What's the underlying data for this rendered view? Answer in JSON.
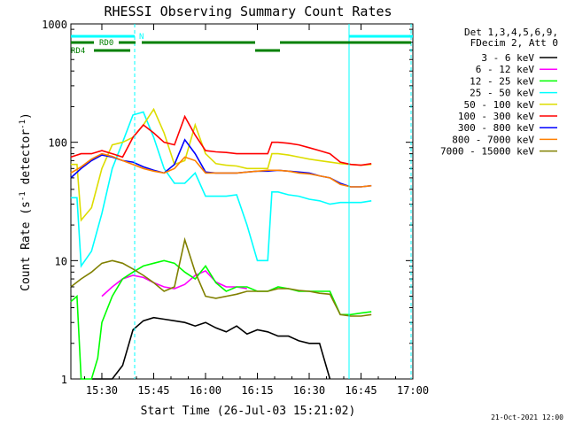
{
  "chart_data": {
    "type": "line",
    "title": "RHESSI Observing Summary Count Rates",
    "xlabel": "Start Time (26-Jul-03 15:21:02)",
    "ylabel": "Count Rate (s",
    "ylabel_sup1": "-1",
    "ylabel_mid": " detector",
    "ylabel_sup2": "-1",
    "ylabel_end": ")",
    "y_scale": "log",
    "ylim": [
      1,
      1000
    ],
    "xlim": [
      "15:21:02",
      "17:00:00"
    ],
    "x_ticks": [
      "15:30",
      "15:45",
      "16:00",
      "16:15",
      "16:30",
      "16:45",
      "17:00"
    ],
    "y_ticks": [
      "1",
      "10",
      "100",
      "1000"
    ],
    "legend_title": [
      "Det 1,3,4,5,6,9,",
      "FDecim 2, Att 0"
    ],
    "legend_position": "right",
    "footer_date": "21-Oct-2021 12:00",
    "markers": [
      {
        "label": "N",
        "color": "#00ffff"
      },
      {
        "label": "RD0",
        "color": "#008000"
      },
      {
        "label": "RD4",
        "color": "#008000"
      }
    ],
    "series": [
      {
        "name": "3 - 6 keV",
        "color": "#000000",
        "x": [
          15.45,
          15.5,
          15.55,
          15.6,
          15.65,
          15.7,
          15.75,
          15.8,
          15.85,
          15.9,
          15.95,
          16.0,
          16.05,
          16.1,
          16.15,
          16.2,
          16.25,
          16.3,
          16.35,
          16.4,
          16.45,
          16.5,
          16.55,
          16.6
        ],
        "y": [
          1,
          1,
          1,
          1.3,
          2.6,
          3.1,
          3.3,
          3.2,
          3.1,
          3.0,
          2.8,
          3.0,
          2.7,
          2.5,
          2.8,
          2.4,
          2.6,
          2.5,
          2.3,
          2.3,
          2.1,
          2.0,
          2.0,
          1
        ]
      },
      {
        "name": "6 - 12 keV",
        "color": "#ff00ff",
        "x": [
          15.5,
          15.55,
          15.6,
          15.65,
          15.7,
          15.75,
          15.8,
          15.85,
          15.9,
          15.95,
          16.0,
          16.05,
          16.1,
          16.15,
          16.2
        ],
        "y": [
          5,
          6,
          7,
          7.5,
          7.2,
          6.5,
          6.0,
          5.8,
          6.3,
          7.5,
          8.2,
          6.6,
          6.0,
          6.0,
          5.8
        ]
      },
      {
        "name": "12 - 25 keV",
        "color": "#00ff00",
        "x": [
          15.35,
          15.38,
          15.4,
          15.45,
          15.48,
          15.5,
          15.55,
          15.6,
          15.65,
          15.7,
          15.75,
          15.8,
          15.85,
          15.9,
          15.95,
          16.0,
          16.05,
          16.1,
          16.15,
          16.2,
          16.25,
          16.3,
          16.35,
          16.4,
          16.45,
          16.5,
          16.55,
          16.6,
          16.65,
          16.7,
          16.75,
          16.8
        ],
        "y": [
          4.5,
          5,
          1,
          1,
          1.5,
          3,
          5,
          7,
          8,
          9,
          9.5,
          10,
          9.5,
          8,
          7,
          9,
          6.5,
          5.5,
          6,
          6,
          5.5,
          5.5,
          6,
          5.8,
          5.5,
          5.5,
          5.5,
          5.5,
          3.5,
          3.5,
          3.6,
          3.7
        ]
      },
      {
        "name": "25 - 50 keV",
        "color": "#00ffff",
        "x": [
          15.35,
          15.38,
          15.4,
          15.45,
          15.5,
          15.55,
          15.6,
          15.65,
          15.7,
          15.75,
          15.8,
          15.85,
          15.9,
          15.95,
          16.0,
          16.05,
          16.1,
          16.15,
          16.2,
          16.25,
          16.3,
          16.32,
          16.35,
          16.4,
          16.45,
          16.5,
          16.55,
          16.6,
          16.65,
          16.7,
          16.75,
          16.8
        ],
        "y": [
          34,
          34,
          9,
          12,
          25,
          60,
          100,
          170,
          180,
          110,
          60,
          45,
          45,
          55,
          35,
          35,
          35,
          36,
          20,
          10,
          10,
          38,
          38,
          36,
          35,
          33,
          32,
          30,
          31,
          31,
          31,
          32
        ]
      },
      {
        "name": "50 - 100 keV",
        "color": "#dddd00",
        "x": [
          15.35,
          15.38,
          15.4,
          15.45,
          15.5,
          15.55,
          15.6,
          15.65,
          15.7,
          15.75,
          15.8,
          15.85,
          15.9,
          15.95,
          16.0,
          16.05,
          16.1,
          16.15,
          16.2,
          16.25,
          16.3,
          16.32,
          16.35,
          16.4,
          16.45,
          16.5,
          16.55,
          16.6,
          16.65,
          16.7,
          16.75,
          16.8
        ],
        "y": [
          65,
          65,
          22,
          28,
          60,
          95,
          100,
          110,
          140,
          190,
          120,
          65,
          70,
          140,
          80,
          66,
          64,
          63,
          60,
          60,
          60,
          80,
          80,
          78,
          75,
          72,
          70,
          68,
          66,
          65,
          64,
          65
        ]
      },
      {
        "name": "100 - 300 keV",
        "color": "#ff0000",
        "x": [
          15.35,
          15.4,
          15.45,
          15.5,
          15.55,
          15.6,
          15.65,
          15.7,
          15.75,
          15.8,
          15.85,
          15.9,
          15.95,
          16.0,
          16.05,
          16.1,
          16.15,
          16.2,
          16.25,
          16.3,
          16.32,
          16.35,
          16.4,
          16.45,
          16.5,
          16.55,
          16.6,
          16.65,
          16.7,
          16.75,
          16.8
        ],
        "y": [
          75,
          80,
          80,
          85,
          80,
          75,
          110,
          140,
          120,
          100,
          95,
          165,
          115,
          85,
          83,
          82,
          80,
          80,
          80,
          80,
          100,
          100,
          98,
          95,
          90,
          85,
          80,
          68,
          65,
          64,
          66
        ]
      },
      {
        "name": "300 - 800 keV",
        "color": "#0000ff",
        "x": [
          15.35,
          15.4,
          15.45,
          15.5,
          15.55,
          15.6,
          15.65,
          15.7,
          15.75,
          15.8,
          15.85,
          15.9,
          15.95,
          16.0,
          16.05,
          16.1,
          16.15,
          16.2,
          16.25,
          16.3,
          16.35,
          16.4,
          16.45,
          16.5,
          16.55,
          16.6,
          16.65,
          16.7,
          16.75,
          16.8
        ],
        "y": [
          50,
          60,
          70,
          78,
          75,
          70,
          68,
          62,
          58,
          55,
          65,
          105,
          80,
          56,
          55,
          55,
          55,
          56,
          57,
          57,
          58,
          57,
          56,
          55,
          52,
          50,
          45,
          42,
          42,
          43
        ]
      },
      {
        "name": "800 - 7000 keV",
        "color": "#ff8000",
        "x": [
          15.35,
          15.4,
          15.45,
          15.5,
          15.55,
          15.6,
          15.65,
          15.7,
          15.75,
          15.8,
          15.85,
          15.9,
          15.95,
          16.0,
          16.05,
          16.1,
          16.15,
          16.2,
          16.25,
          16.3,
          16.35,
          16.4,
          16.45,
          16.5,
          16.55,
          16.6,
          16.65,
          16.7,
          16.75,
          16.8
        ],
        "y": [
          55,
          62,
          72,
          80,
          76,
          70,
          65,
          60,
          57,
          55,
          60,
          75,
          70,
          55,
          55,
          55,
          55,
          56,
          57,
          58,
          58,
          57,
          55,
          54,
          52,
          50,
          44,
          42,
          42,
          43
        ]
      },
      {
        "name": "7000 - 15000 keV",
        "color": "#808000",
        "x": [
          15.35,
          15.4,
          15.45,
          15.5,
          15.55,
          15.6,
          15.65,
          15.7,
          15.75,
          15.8,
          15.85,
          15.9,
          15.95,
          16.0,
          16.05,
          16.1,
          16.15,
          16.2,
          16.25,
          16.3,
          16.35,
          16.4,
          16.45,
          16.5,
          16.55,
          16.6,
          16.65,
          16.7,
          16.75,
          16.8
        ],
        "y": [
          6,
          7,
          8,
          9.5,
          10,
          9.5,
          8.5,
          7.5,
          6.5,
          5.5,
          6,
          15,
          8,
          5,
          4.8,
          5,
          5.2,
          5.5,
          5.5,
          5.5,
          5.8,
          5.8,
          5.6,
          5.5,
          5.3,
          5.2,
          3.5,
          3.4,
          3.4,
          3.5
        ]
      }
    ]
  }
}
